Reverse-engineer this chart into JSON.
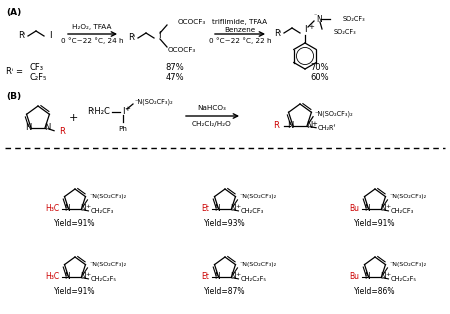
{
  "bg_color": "#ffffff",
  "figsize": [
    4.5,
    3.14
  ],
  "dpi": 100,
  "section_A_label": "(A)",
  "section_B_label": "(B)",
  "arrow1_label_top": "H₂O₂, TFAA",
  "arrow1_label_bot": "0 °C~22 °C, 24 h",
  "arrow2_label_top": "triflimide, TFAA",
  "arrow2_label_mid": "Benzene",
  "arrow2_label_bot": "0 °C~22 °C, 22 h",
  "arrow3_label_top": "NaHCO₃",
  "arrow3_label_bot": "CH₂Cl₂/H₂O",
  "Rf_vals_line1": "CF₃",
  "Rf_vals_line2": "C₂F₅",
  "yield_A1_1": "87%",
  "yield_A1_2": "47%",
  "yield_A2_1": "70%",
  "yield_A2_2": "60%",
  "products": [
    {
      "r_group": "H₃C",
      "chain": "CH₂CF₃",
      "yield": "Yield=91%",
      "col": 0,
      "row": 0
    },
    {
      "r_group": "Et",
      "chain": "CH₂CF₃",
      "yield": "Yield=93%",
      "col": 1,
      "row": 0
    },
    {
      "r_group": "Bu",
      "chain": "CH₂CF₃",
      "yield": "Yield=91%",
      "col": 2,
      "row": 0
    },
    {
      "r_group": "H₃C",
      "chain": "CH₂C₂F₅",
      "yield": "Yield=91%",
      "col": 0,
      "row": 1
    },
    {
      "r_group": "Et",
      "chain": "CH₂C₂F₅",
      "yield": "Yield=87%",
      "col": 1,
      "row": 1
    },
    {
      "r_group": "Bu",
      "chain": "CH₂C₂F₅",
      "yield": "Yield=86%",
      "col": 2,
      "row": 1
    }
  ],
  "red_color": "#cc0000",
  "black_color": "#000000"
}
